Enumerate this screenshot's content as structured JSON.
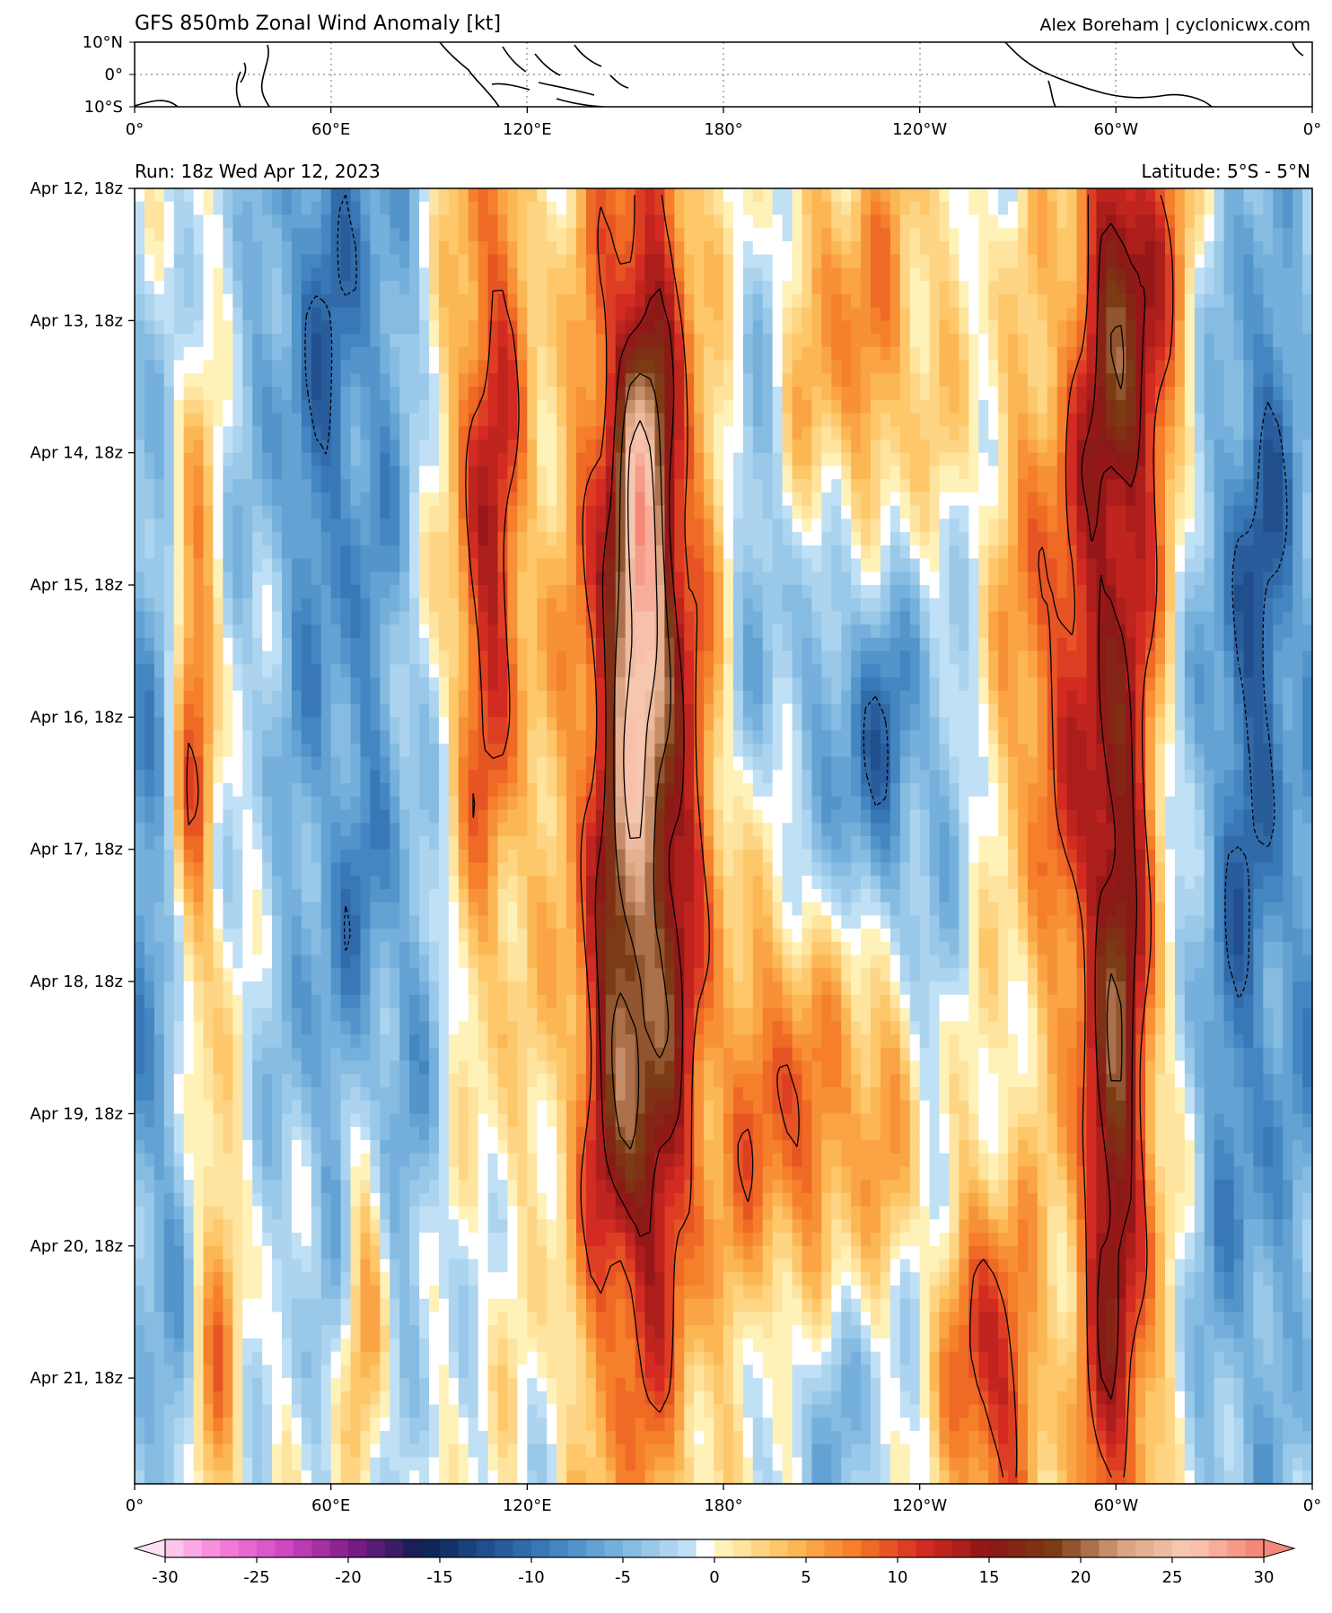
{
  "header": {
    "title": "GFS 850mb Zonal Wind Anomaly [kt]",
    "credit": "Alex Boreham | cyclonicwx.com"
  },
  "run_label": "Run: 18z Wed Apr 12, 2023",
  "latitude_label": "Latitude: 5°S - 5°N",
  "map_panel": {
    "lat_ticks": [
      "10°N",
      "0°",
      "10°S"
    ],
    "lon_ticks": [
      "0°",
      "60°E",
      "120°E",
      "180°",
      "120°W",
      "60°W",
      "0°"
    ]
  },
  "chart_data": {
    "type": "heatmap",
    "title": "GFS 850mb Zonal Wind Anomaly [kt]",
    "x_label": "",
    "y_label": "",
    "x_ticks": [
      "0°",
      "60°E",
      "120°E",
      "180°",
      "120°W",
      "60°W",
      "0°"
    ],
    "x_range_deg_east": [
      0,
      360
    ],
    "y_ticks": [
      "Apr 12, 18z",
      "Apr 13, 18z",
      "Apr 14, 18z",
      "Apr 15, 18z",
      "Apr 16, 18z",
      "Apr 17, 18z",
      "Apr 18, 18z",
      "Apr 19, 18z",
      "Apr 20, 18z",
      "Apr 21, 18z"
    ],
    "y_direction": "time increases downward",
    "colorbar": {
      "min": -30,
      "max": 30,
      "step": 1,
      "extend": "both",
      "ticks": [
        "-30",
        "-25",
        "-20",
        "-15",
        "-10",
        "-5",
        "0",
        "5",
        "10",
        "15",
        "20",
        "25",
        "30"
      ]
    },
    "contour_levels": [
      -10,
      10,
      15,
      20,
      25
    ],
    "anomaly_features": [
      {
        "lon": 155,
        "t_days": 4.4,
        "sigma_lon": 14,
        "sigma_t": 3.6,
        "value": 20
      },
      {
        "lon": 155,
        "t_days": 2.7,
        "sigma_lon": 6,
        "sigma_t": 1.3,
        "value": 10
      },
      {
        "lon": 150,
        "t_days": 6.8,
        "sigma_lon": 10,
        "sigma_t": 1.2,
        "value": 5
      },
      {
        "lon": 108,
        "t_days": 2.5,
        "sigma_lon": 9,
        "sigma_t": 2.5,
        "value": 13
      },
      {
        "lon": 200,
        "t_days": 7.0,
        "sigma_lon": 15,
        "sigma_t": 1.4,
        "value": 10
      },
      {
        "lon": 227,
        "t_days": 6.6,
        "sigma_lon": 8,
        "sigma_t": 1.0,
        "value": 7
      },
      {
        "lon": 300,
        "t_days": 6.3,
        "sigma_lon": 9,
        "sigma_t": 3.6,
        "value": 18
      },
      {
        "lon": 305,
        "t_days": 0.8,
        "sigma_lon": 12,
        "sigma_t": 1.4,
        "value": 13
      },
      {
        "lon": 278,
        "t_days": 3.6,
        "sigma_lon": 10,
        "sigma_t": 1.8,
        "value": 9
      },
      {
        "lon": 262,
        "t_days": 9.0,
        "sigma_lon": 10,
        "sigma_t": 1.0,
        "value": 13
      },
      {
        "lon": 222,
        "t_days": 1.3,
        "sigma_lon": 18,
        "sigma_t": 1.3,
        "value": 8
      },
      {
        "lon": 18,
        "t_days": 4.3,
        "sigma_lon": 5,
        "sigma_t": 1.8,
        "value": 12
      },
      {
        "lon": 70,
        "t_days": 8.1,
        "sigma_lon": 5,
        "sigma_t": 1.2,
        "value": 8
      },
      {
        "lon": 25,
        "t_days": 8.8,
        "sigma_lon": 5,
        "sigma_t": 1.3,
        "value": 7
      },
      {
        "lon": 60,
        "t_days": 1.0,
        "sigma_lon": 18,
        "sigma_t": 2.4,
        "value": -9
      },
      {
        "lon": 70,
        "t_days": 6.3,
        "sigma_lon": 18,
        "sigma_t": 1.8,
        "value": -7
      },
      {
        "lon": 225,
        "t_days": 4.3,
        "sigma_lon": 16,
        "sigma_t": 1.4,
        "value": -10
      },
      {
        "lon": 340,
        "t_days": 6.0,
        "sigma_lon": 14,
        "sigma_t": 3.2,
        "value": -8
      },
      {
        "lon": 345,
        "t_days": 2.2,
        "sigma_lon": 12,
        "sigma_t": 1.8,
        "value": -6
      },
      {
        "lon": 10,
        "t_days": 6.5,
        "sigma_lon": 8,
        "sigma_t": 3.0,
        "value": -6
      },
      {
        "lon": 210,
        "t_days": 9.1,
        "sigma_lon": 14,
        "sigma_t": 0.8,
        "value": -6
      },
      {
        "lon": 190,
        "t_days": 2.5,
        "sigma_lon": 8,
        "sigma_t": 2.0,
        "value": -5
      }
    ]
  },
  "colors": {
    "neg_stops": [
      "#fde0f2",
      "#f87fd8",
      "#cc44c0",
      "#7a1a86",
      "#0d1f4f",
      "#22508f",
      "#3f82c0",
      "#7ab5de",
      "#bfe0f5"
    ],
    "pos_stops": [
      "#fff2b8",
      "#fdbe5a",
      "#f47a26",
      "#d62b22",
      "#8c1416",
      "#7a3d15",
      "#d9a27f",
      "#f9cbb4",
      "#f58878"
    ],
    "zero": "#ffffff"
  }
}
